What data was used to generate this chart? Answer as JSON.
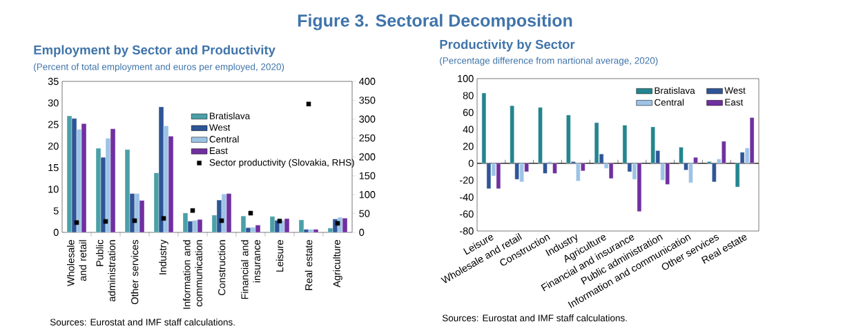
{
  "chart_data": [
    {
      "type": "bar",
      "title": "Employment by Sector and Productivity",
      "subtitle": "(Percent of total employment and euros per employed, 2020)",
      "annotations": [
        "Figure 3. Sectoral Decomposition",
        "Sources: Eurostat and IMF staff calculations."
      ],
      "categories": [
        "Wholesale and retail",
        "Public administration",
        "Other services",
        "Industry",
        "Information and communication",
        "Construction",
        "Financial and insurance",
        "Leisure",
        "Real estate",
        "Agriculture"
      ],
      "series": [
        {
          "name": "Bratislava",
          "color": "#4ba0a8",
          "values": [
            27.0,
            19.5,
            19.2,
            13.8,
            4.5,
            4.0,
            3.8,
            3.7,
            2.9,
            1.0
          ]
        },
        {
          "name": "West",
          "color": "#2e5597",
          "values": [
            26.4,
            17.4,
            9.0,
            29.1,
            2.6,
            7.5,
            1.1,
            2.8,
            0.7,
            3.1
          ]
        },
        {
          "name": "Central",
          "color": "#9dc3e6",
          "values": [
            23.9,
            21.8,
            9.0,
            24.7,
            2.8,
            8.9,
            1.2,
            2.8,
            0.7,
            3.5
          ]
        },
        {
          "name": "East",
          "color": "#7030a0",
          "values": [
            25.2,
            24.0,
            7.4,
            22.3,
            3.0,
            9.0,
            1.7,
            3.2,
            0.7,
            3.3
          ]
        },
        {
          "name": "Sector productivity (Slovakia, RHS)",
          "type": "scatter",
          "marker": "square",
          "axis": "y2",
          "color": "#000000",
          "values": [
            26,
            29,
            31,
            37,
            58,
            31,
            51,
            30,
            340,
            24
          ]
        }
      ],
      "ylim": [
        0,
        35
      ],
      "yticks": [
        0,
        5,
        10,
        15,
        20,
        25,
        30,
        35
      ],
      "y2lim": [
        0,
        400
      ],
      "y2ticks": [
        0,
        50,
        100,
        150,
        200,
        250,
        300,
        350,
        400
      ],
      "legend": "top right"
    },
    {
      "type": "bar",
      "title": "Productivity by Sector",
      "subtitle": "(Percentage difference from nartional average, 2020)",
      "annotations": [
        "Sources: Eurostat and IMF staff calculations."
      ],
      "categories": [
        "Leisure",
        "Wholesale and retail",
        "Construction",
        "Industry",
        "Agriculture",
        "Financial and insurance",
        "Public administration",
        "Information and communication",
        "Other services",
        "Real estate"
      ],
      "series": [
        {
          "name": "Bratislava",
          "color": "#23858f",
          "values": [
            83,
            68,
            66,
            57,
            48,
            45,
            43,
            19,
            2,
            -28
          ]
        },
        {
          "name": "West",
          "color": "#2e5597",
          "values": [
            -30,
            -19,
            -12,
            2,
            11,
            -10,
            15,
            -8,
            -22,
            13
          ]
        },
        {
          "name": "Central",
          "color": "#9dc3e6",
          "values": [
            -15,
            -22,
            2,
            -21,
            -6,
            -19,
            -20,
            -23,
            5,
            18
          ]
        },
        {
          "name": "East",
          "color": "#7030a0",
          "values": [
            -30,
            -10,
            -12,
            -9,
            -18,
            -57,
            -25,
            7,
            26,
            54
          ]
        }
      ],
      "ylim": [
        -80,
        100
      ],
      "yticks": [
        -80,
        -60,
        -40,
        -20,
        0,
        20,
        40,
        60,
        80,
        100
      ],
      "legend": "top right"
    }
  ]
}
